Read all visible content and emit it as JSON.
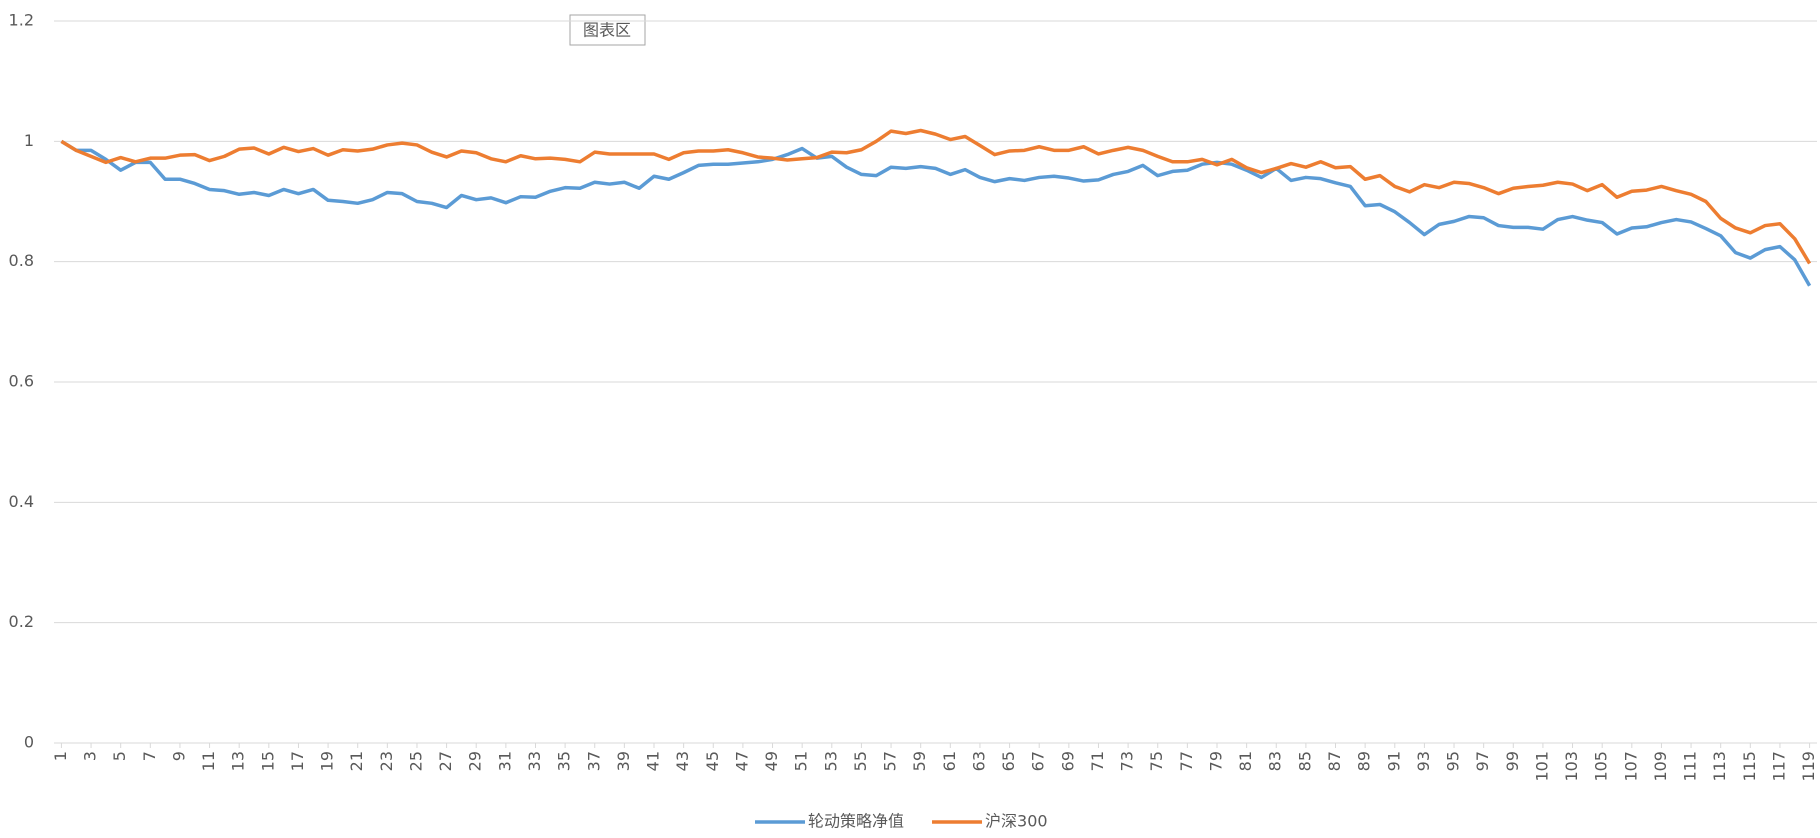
{
  "chart_data": {
    "type": "line",
    "tooltip": "图表区",
    "x": [
      1,
      2,
      3,
      4,
      5,
      6,
      7,
      8,
      9,
      10,
      11,
      12,
      13,
      14,
      15,
      16,
      17,
      18,
      19,
      20,
      21,
      22,
      23,
      24,
      25,
      26,
      27,
      28,
      29,
      30,
      31,
      32,
      33,
      34,
      35,
      36,
      37,
      38,
      39,
      40,
      41,
      42,
      43,
      44,
      45,
      46,
      47,
      48,
      49,
      50,
      51,
      52,
      53,
      54,
      55,
      56,
      57,
      58,
      59,
      60,
      61,
      62,
      63,
      64,
      65,
      66,
      67,
      68,
      69,
      70,
      71,
      72,
      73,
      74,
      75,
      76,
      77,
      78,
      79,
      80,
      81,
      82,
      83,
      84,
      85,
      86,
      87,
      88,
      89,
      90,
      91,
      92,
      93,
      94,
      95,
      96,
      97,
      98,
      99,
      100,
      101,
      102,
      103,
      104,
      105,
      106,
      107,
      108,
      109,
      110,
      111,
      112,
      113,
      114,
      115,
      116,
      117,
      118,
      119
    ],
    "xlim": [
      0.5,
      119.5
    ],
    "xticks": [
      1,
      3,
      5,
      7,
      9,
      11,
      13,
      15,
      17,
      19,
      21,
      23,
      25,
      27,
      29,
      31,
      33,
      35,
      37,
      39,
      41,
      43,
      45,
      47,
      49,
      51,
      53,
      55,
      57,
      59,
      61,
      63,
      65,
      67,
      69,
      71,
      73,
      75,
      77,
      79,
      81,
      83,
      85,
      87,
      89,
      91,
      93,
      95,
      97,
      99,
      101,
      103,
      105,
      107,
      109,
      111,
      113,
      115,
      117,
      119
    ],
    "ylim": [
      0,
      1.2
    ],
    "yticks": [
      0,
      0.2,
      0.4,
      0.6,
      0.8,
      1,
      1.2
    ],
    "grid": true,
    "legend": "bottom",
    "series": [
      {
        "name": "轮动策略净值",
        "color": "#5b9bd5",
        "values": [
          1.0,
          0.985,
          0.985,
          0.97,
          0.952,
          0.965,
          0.965,
          0.937,
          0.937,
          0.93,
          0.92,
          0.918,
          0.912,
          0.915,
          0.91,
          0.92,
          0.913,
          0.92,
          0.902,
          0.9,
          0.897,
          0.903,
          0.915,
          0.913,
          0.9,
          0.897,
          0.89,
          0.91,
          0.903,
          0.906,
          0.898,
          0.908,
          0.907,
          0.917,
          0.923,
          0.922,
          0.932,
          0.929,
          0.932,
          0.922,
          0.942,
          0.937,
          0.948,
          0.96,
          0.962,
          0.962,
          0.964,
          0.966,
          0.97,
          0.978,
          0.988,
          0.972,
          0.975,
          0.957,
          0.945,
          0.943,
          0.957,
          0.955,
          0.958,
          0.955,
          0.945,
          0.953,
          0.94,
          0.933,
          0.938,
          0.935,
          0.94,
          0.942,
          0.939,
          0.934,
          0.936,
          0.945,
          0.95,
          0.96,
          0.943,
          0.95,
          0.952,
          0.962,
          0.965,
          0.962,
          0.952,
          0.94,
          0.955,
          0.935,
          0.94,
          0.938,
          0.931,
          0.925,
          0.893,
          0.895,
          0.883,
          0.865,
          0.845,
          0.862,
          0.867,
          0.875,
          0.873,
          0.86,
          0.857,
          0.857,
          0.854,
          0.87,
          0.875,
          0.869,
          0.865,
          0.846,
          0.856,
          0.858,
          0.865,
          0.87,
          0.866,
          0.855,
          0.843,
          0.815,
          0.806,
          0.82,
          0.825,
          0.803,
          0.76
        ]
      },
      {
        "name": "沪深300",
        "color": "#ed7d31",
        "values": [
          1.0,
          0.985,
          0.975,
          0.965,
          0.973,
          0.966,
          0.972,
          0.972,
          0.977,
          0.978,
          0.968,
          0.975,
          0.987,
          0.989,
          0.979,
          0.99,
          0.983,
          0.988,
          0.977,
          0.986,
          0.984,
          0.987,
          0.994,
          0.997,
          0.994,
          0.982,
          0.974,
          0.984,
          0.981,
          0.971,
          0.966,
          0.976,
          0.971,
          0.972,
          0.97,
          0.966,
          0.982,
          0.979,
          0.979,
          0.979,
          0.979,
          0.97,
          0.981,
          0.984,
          0.984,
          0.986,
          0.981,
          0.974,
          0.972,
          0.969,
          0.971,
          0.973,
          0.982,
          0.981,
          0.986,
          1.0,
          1.017,
          1.013,
          1.018,
          1.012,
          1.003,
          1.008,
          0.993,
          0.978,
          0.984,
          0.985,
          0.991,
          0.985,
          0.985,
          0.991,
          0.979,
          0.985,
          0.99,
          0.985,
          0.975,
          0.966,
          0.966,
          0.97,
          0.961,
          0.97,
          0.956,
          0.948,
          0.955,
          0.963,
          0.957,
          0.966,
          0.956,
          0.958,
          0.937,
          0.943,
          0.925,
          0.916,
          0.928,
          0.923,
          0.932,
          0.93,
          0.923,
          0.913,
          0.922,
          0.925,
          0.927,
          0.932,
          0.929,
          0.918,
          0.928,
          0.907,
          0.917,
          0.919,
          0.925,
          0.918,
          0.912,
          0.9,
          0.872,
          0.856,
          0.848,
          0.86,
          0.863,
          0.838,
          0.797
        ]
      }
    ]
  }
}
